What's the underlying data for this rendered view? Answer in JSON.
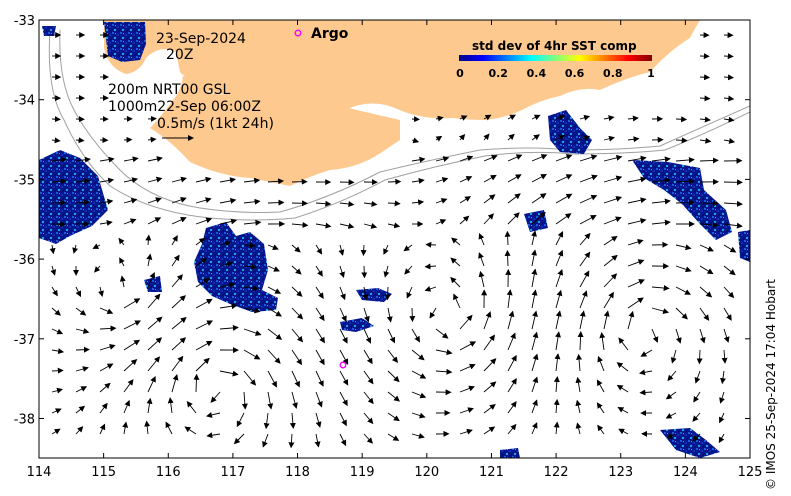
{
  "map": {
    "date": "23-Sep-2024",
    "hour": "20Z",
    "legend_line1": "200m  NRT00 GSL",
    "legend_line2": "1000m22-Sep 06:00Z",
    "scale_label": "0.5m/s (1kt 24h)",
    "argo_label": "Argo",
    "colorbar": {
      "title": "std dev of 4hr SST comp",
      "ticks": [
        "0",
        "0.2",
        "0.4",
        "0.6",
        "0.8",
        "1"
      ],
      "colormap": "jet"
    },
    "lon_ticks": [
      "114",
      "115",
      "116",
      "117",
      "118",
      "119",
      "120",
      "121",
      "122",
      "123",
      "124",
      "125"
    ],
    "lat_ticks": [
      "-33",
      "-34",
      "-35",
      "-36",
      "-37",
      "-38"
    ],
    "credit": "© IMOS 25-Sep-2024 17:04 Hobart",
    "colors": {
      "land": "#fdc98f",
      "argo_marker": "#ff00ff",
      "isobath": "#a0a0a0"
    },
    "argo_floats": [
      {
        "lon": 117.98,
        "lat": -33.17
      },
      {
        "lon": 118.7,
        "lat": -37.33
      }
    ]
  }
}
